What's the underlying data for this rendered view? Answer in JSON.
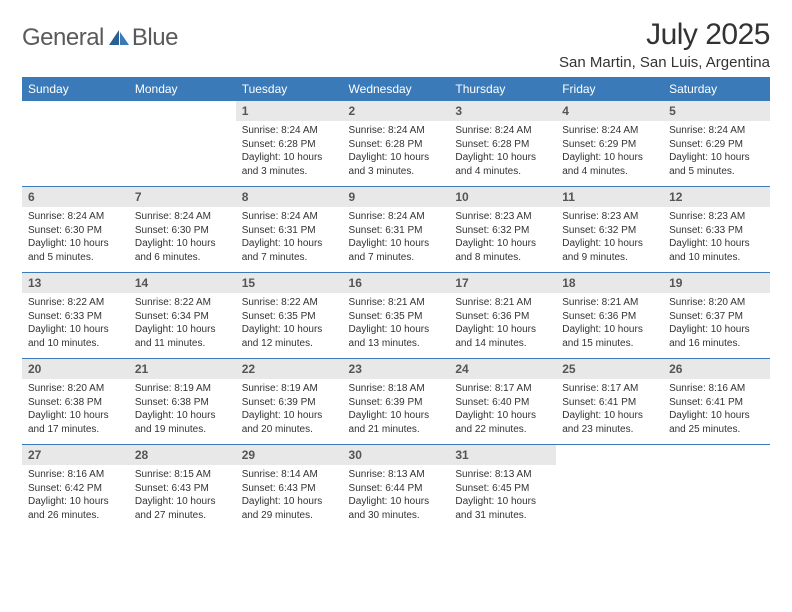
{
  "brand": {
    "word1": "General",
    "word2": "Blue"
  },
  "title": "July 2025",
  "location": "San Martin, San Luis, Argentina",
  "colors": {
    "header_bg": "#3a7ab8",
    "header_text": "#ffffff",
    "daynum_bg": "#e8e8e8",
    "daynum_text": "#555555",
    "body_text": "#333333",
    "rule": "#3a7ab8"
  },
  "days_of_week": [
    "Sunday",
    "Monday",
    "Tuesday",
    "Wednesday",
    "Thursday",
    "Friday",
    "Saturday"
  ],
  "weeks": [
    [
      null,
      null,
      {
        "n": "1",
        "sr": "8:24 AM",
        "ss": "6:28 PM",
        "dl": "10 hours and 3 minutes."
      },
      {
        "n": "2",
        "sr": "8:24 AM",
        "ss": "6:28 PM",
        "dl": "10 hours and 3 minutes."
      },
      {
        "n": "3",
        "sr": "8:24 AM",
        "ss": "6:28 PM",
        "dl": "10 hours and 4 minutes."
      },
      {
        "n": "4",
        "sr": "8:24 AM",
        "ss": "6:29 PM",
        "dl": "10 hours and 4 minutes."
      },
      {
        "n": "5",
        "sr": "8:24 AM",
        "ss": "6:29 PM",
        "dl": "10 hours and 5 minutes."
      }
    ],
    [
      {
        "n": "6",
        "sr": "8:24 AM",
        "ss": "6:30 PM",
        "dl": "10 hours and 5 minutes."
      },
      {
        "n": "7",
        "sr": "8:24 AM",
        "ss": "6:30 PM",
        "dl": "10 hours and 6 minutes."
      },
      {
        "n": "8",
        "sr": "8:24 AM",
        "ss": "6:31 PM",
        "dl": "10 hours and 7 minutes."
      },
      {
        "n": "9",
        "sr": "8:24 AM",
        "ss": "6:31 PM",
        "dl": "10 hours and 7 minutes."
      },
      {
        "n": "10",
        "sr": "8:23 AM",
        "ss": "6:32 PM",
        "dl": "10 hours and 8 minutes."
      },
      {
        "n": "11",
        "sr": "8:23 AM",
        "ss": "6:32 PM",
        "dl": "10 hours and 9 minutes."
      },
      {
        "n": "12",
        "sr": "8:23 AM",
        "ss": "6:33 PM",
        "dl": "10 hours and 10 minutes."
      }
    ],
    [
      {
        "n": "13",
        "sr": "8:22 AM",
        "ss": "6:33 PM",
        "dl": "10 hours and 10 minutes."
      },
      {
        "n": "14",
        "sr": "8:22 AM",
        "ss": "6:34 PM",
        "dl": "10 hours and 11 minutes."
      },
      {
        "n": "15",
        "sr": "8:22 AM",
        "ss": "6:35 PM",
        "dl": "10 hours and 12 minutes."
      },
      {
        "n": "16",
        "sr": "8:21 AM",
        "ss": "6:35 PM",
        "dl": "10 hours and 13 minutes."
      },
      {
        "n": "17",
        "sr": "8:21 AM",
        "ss": "6:36 PM",
        "dl": "10 hours and 14 minutes."
      },
      {
        "n": "18",
        "sr": "8:21 AM",
        "ss": "6:36 PM",
        "dl": "10 hours and 15 minutes."
      },
      {
        "n": "19",
        "sr": "8:20 AM",
        "ss": "6:37 PM",
        "dl": "10 hours and 16 minutes."
      }
    ],
    [
      {
        "n": "20",
        "sr": "8:20 AM",
        "ss": "6:38 PM",
        "dl": "10 hours and 17 minutes."
      },
      {
        "n": "21",
        "sr": "8:19 AM",
        "ss": "6:38 PM",
        "dl": "10 hours and 19 minutes."
      },
      {
        "n": "22",
        "sr": "8:19 AM",
        "ss": "6:39 PM",
        "dl": "10 hours and 20 minutes."
      },
      {
        "n": "23",
        "sr": "8:18 AM",
        "ss": "6:39 PM",
        "dl": "10 hours and 21 minutes."
      },
      {
        "n": "24",
        "sr": "8:17 AM",
        "ss": "6:40 PM",
        "dl": "10 hours and 22 minutes."
      },
      {
        "n": "25",
        "sr": "8:17 AM",
        "ss": "6:41 PM",
        "dl": "10 hours and 23 minutes."
      },
      {
        "n": "26",
        "sr": "8:16 AM",
        "ss": "6:41 PM",
        "dl": "10 hours and 25 minutes."
      }
    ],
    [
      {
        "n": "27",
        "sr": "8:16 AM",
        "ss": "6:42 PM",
        "dl": "10 hours and 26 minutes."
      },
      {
        "n": "28",
        "sr": "8:15 AM",
        "ss": "6:43 PM",
        "dl": "10 hours and 27 minutes."
      },
      {
        "n": "29",
        "sr": "8:14 AM",
        "ss": "6:43 PM",
        "dl": "10 hours and 29 minutes."
      },
      {
        "n": "30",
        "sr": "8:13 AM",
        "ss": "6:44 PM",
        "dl": "10 hours and 30 minutes."
      },
      {
        "n": "31",
        "sr": "8:13 AM",
        "ss": "6:45 PM",
        "dl": "10 hours and 31 minutes."
      },
      null,
      null
    ]
  ],
  "labels": {
    "sunrise": "Sunrise:",
    "sunset": "Sunset:",
    "daylight": "Daylight:"
  }
}
